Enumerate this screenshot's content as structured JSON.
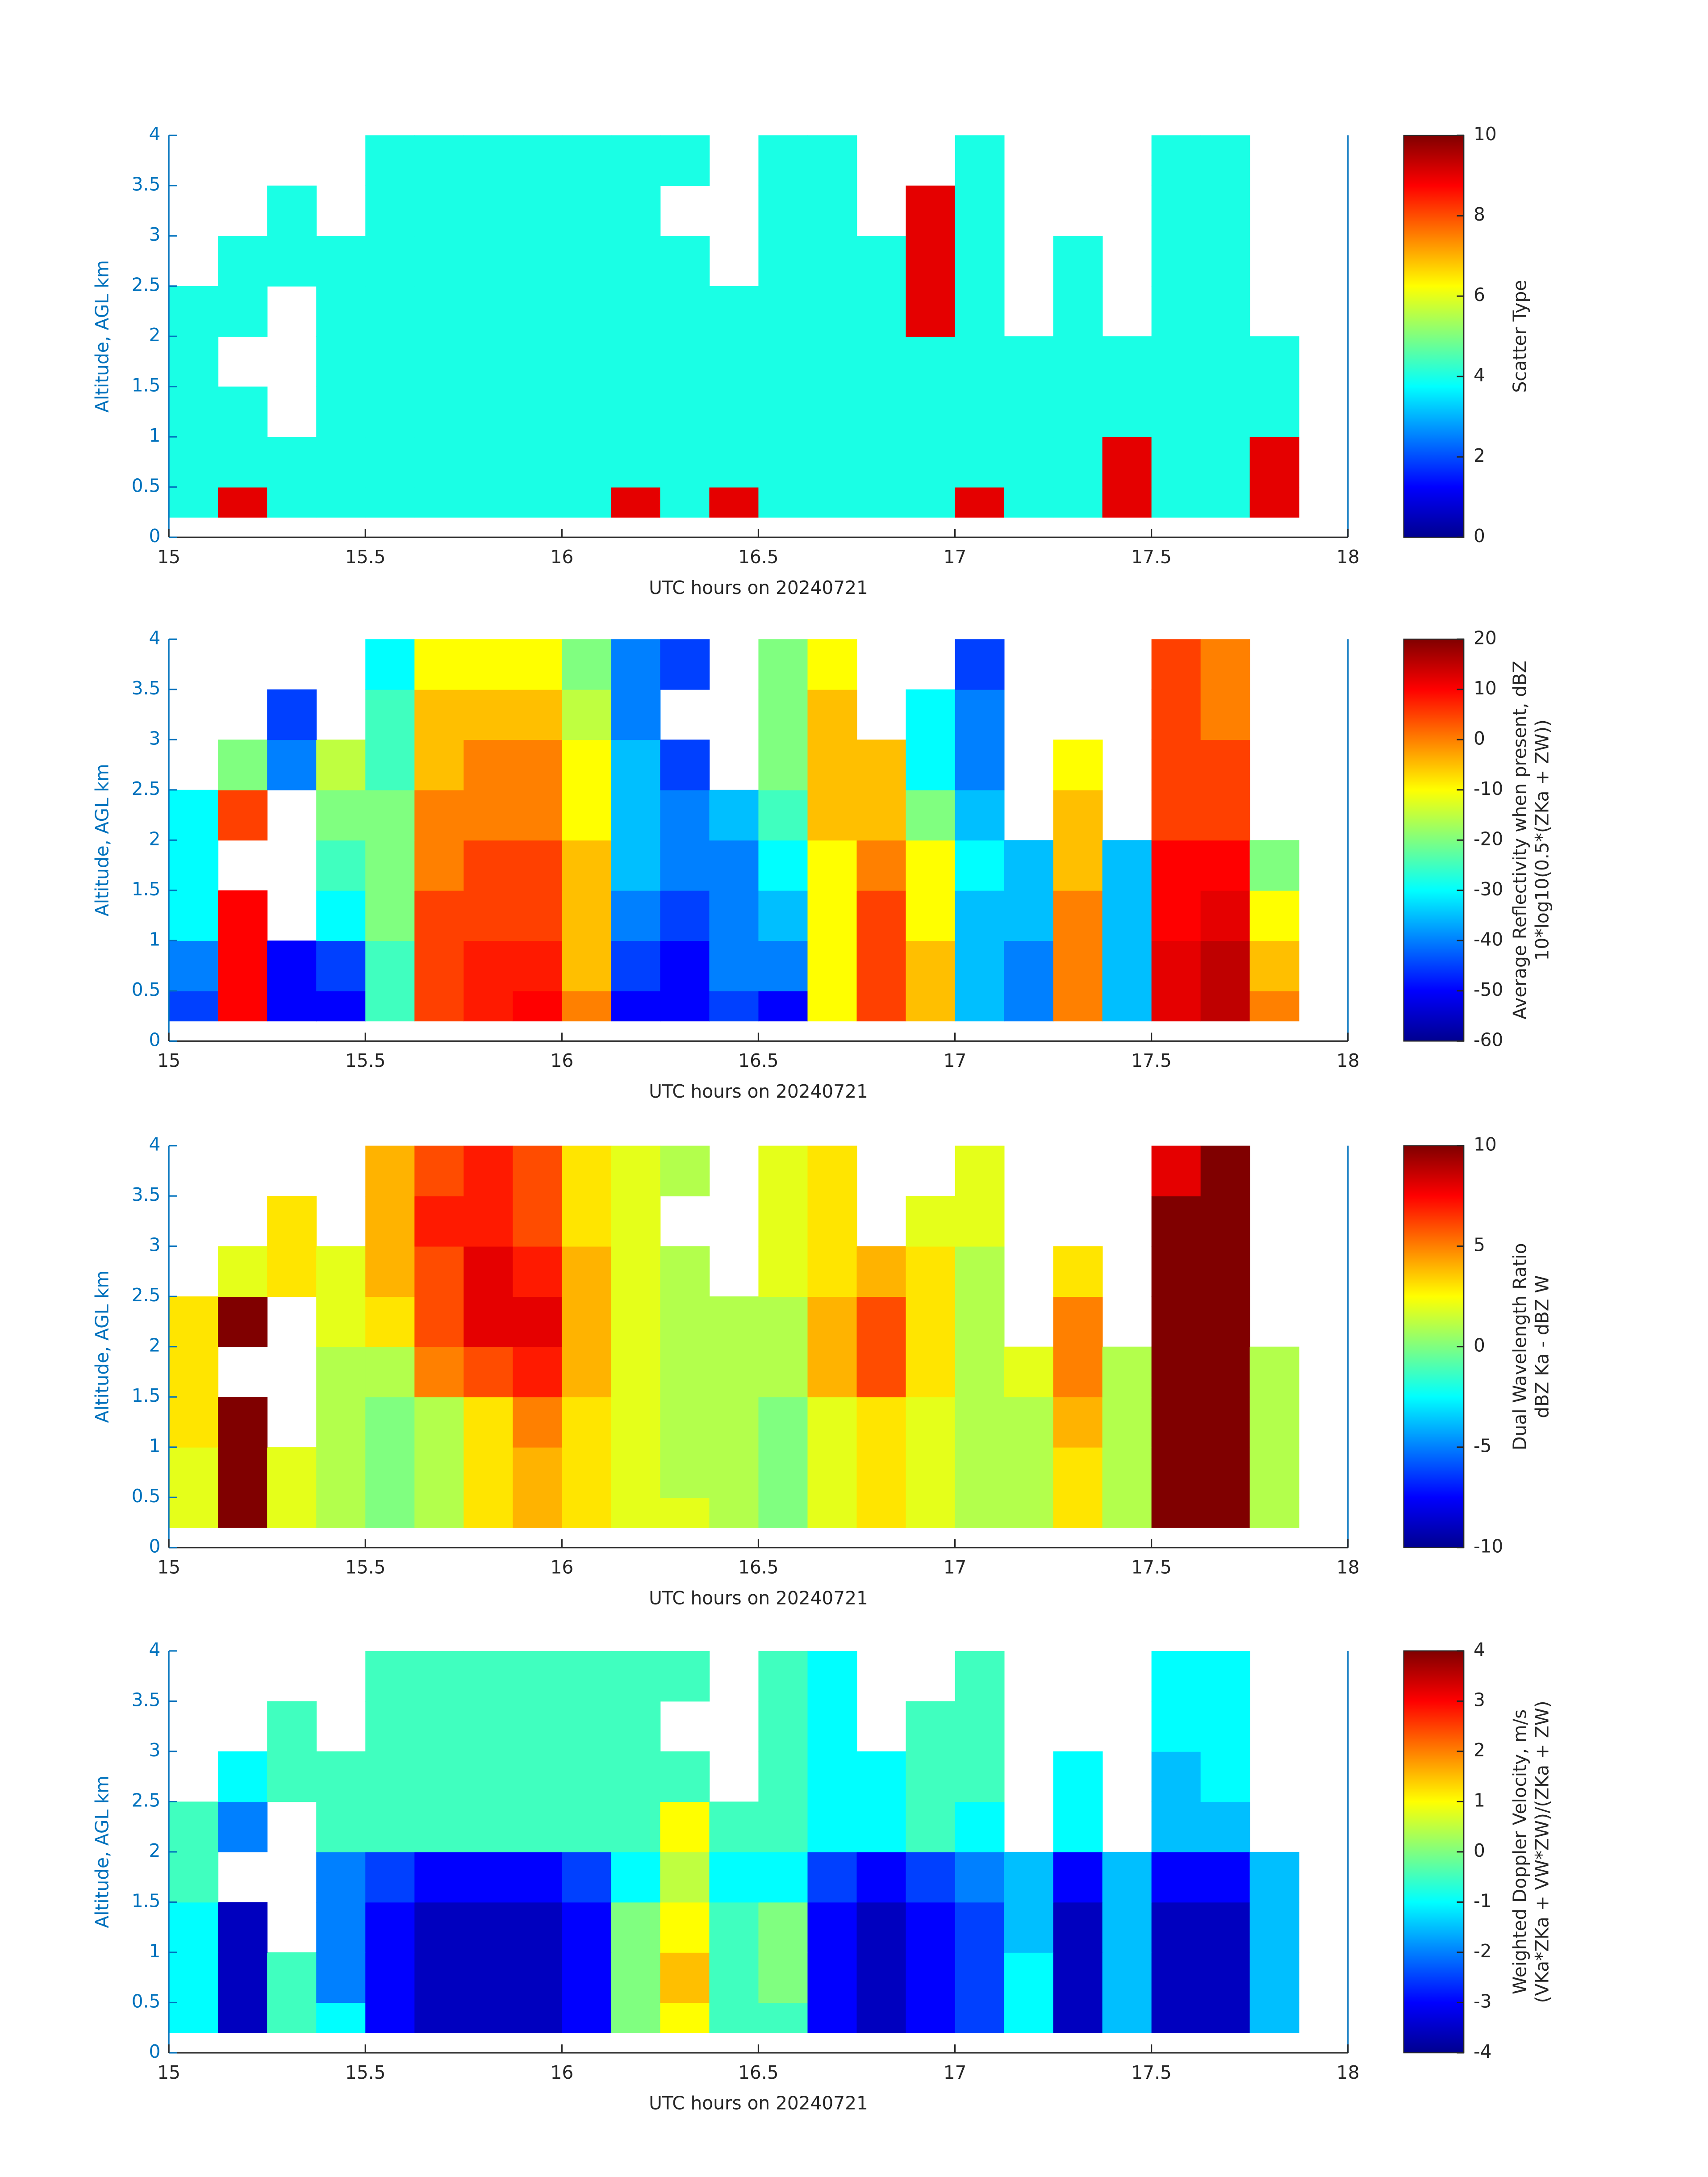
{
  "chart_data": [
    {
      "type": "heatmap",
      "colormap": "jet",
      "x": [
        15,
        15.125,
        15.25,
        15.375,
        15.5,
        15.625,
        15.75,
        15.875,
        16,
        16.125,
        16.25,
        16.375,
        16.5,
        16.625,
        16.75,
        16.875,
        17,
        17.125,
        17.25,
        17.375,
        17.5,
        17.625,
        17.75,
        17.875,
        18
      ],
      "y": [
        0.2,
        0.5,
        1,
        1.5,
        2,
        2.5,
        3,
        3.5,
        4
      ],
      "z": [
        [
          4,
          9,
          4,
          4,
          4,
          4,
          4,
          4,
          4,
          9,
          4,
          9,
          4,
          4,
          4,
          4,
          9,
          4,
          4,
          9,
          4,
          4,
          9,
          null
        ],
        [
          4,
          4,
          4,
          4,
          4,
          4,
          4,
          4,
          4,
          4,
          4,
          4,
          4,
          4,
          4,
          4,
          4,
          4,
          4,
          9,
          4,
          4,
          9,
          null
        ],
        [
          4,
          4,
          null,
          4,
          4,
          4,
          4,
          4,
          4,
          4,
          4,
          4,
          4,
          4,
          4,
          4,
          4,
          4,
          4,
          4,
          4,
          4,
          4,
          null
        ],
        [
          4,
          null,
          null,
          4,
          4,
          4,
          4,
          4,
          4,
          4,
          4,
          4,
          4,
          4,
          4,
          4,
          4,
          4,
          4,
          4,
          4,
          4,
          4,
          null
        ],
        [
          4,
          4,
          null,
          4,
          4,
          4,
          4,
          4,
          4,
          4,
          4,
          4,
          4,
          4,
          4,
          9,
          4,
          null,
          4,
          null,
          4,
          4,
          null,
          null
        ],
        [
          null,
          4,
          4,
          4,
          4,
          4,
          4,
          4,
          4,
          4,
          4,
          null,
          4,
          4,
          4,
          9,
          4,
          null,
          4,
          null,
          4,
          4,
          null,
          null
        ],
        [
          null,
          null,
          4,
          null,
          4,
          4,
          4,
          4,
          4,
          4,
          null,
          null,
          4,
          4,
          null,
          9,
          4,
          null,
          null,
          null,
          4,
          4,
          null,
          null
        ],
        [
          null,
          null,
          null,
          null,
          4,
          4,
          4,
          4,
          4,
          4,
          4,
          null,
          4,
          4,
          null,
          null,
          4,
          null,
          null,
          null,
          4,
          4,
          null,
          null
        ]
      ],
      "xlim": [
        15,
        18
      ],
      "ylim": [
        0,
        4
      ],
      "xticks": [
        15,
        15.5,
        16,
        16.5,
        17,
        17.5,
        18
      ],
      "yticks": [
        0,
        0.5,
        1,
        1.5,
        2,
        2.5,
        3,
        3.5,
        4
      ],
      "xlabel": "UTC hours on 20240721",
      "ylabel": "Altitude, AGL km",
      "colorbar": {
        "label": [
          "Scatter Type"
        ],
        "lim": [
          0,
          10
        ],
        "ticks": [
          0,
          2,
          4,
          6,
          8,
          10
        ]
      }
    },
    {
      "type": "heatmap",
      "colormap": "jet",
      "x": [
        15,
        15.125,
        15.25,
        15.375,
        15.5,
        15.625,
        15.75,
        15.875,
        16,
        16.125,
        16.25,
        16.375,
        16.5,
        16.625,
        16.75,
        16.875,
        17,
        17.125,
        17.25,
        17.375,
        17.5,
        17.625,
        17.75,
        17.875,
        18
      ],
      "y": [
        0.2,
        0.5,
        1,
        1.5,
        2,
        2.5,
        3,
        3.5,
        4
      ],
      "z": [
        [
          -45,
          10,
          -50,
          -50,
          -25,
          5,
          8,
          10,
          0,
          -50,
          -50,
          -45,
          -50,
          -10,
          5,
          -5,
          -35,
          -40,
          0,
          -35,
          12,
          15,
          0,
          null
        ],
        [
          -40,
          10,
          -50,
          -45,
          -25,
          5,
          8,
          8,
          -5,
          -45,
          -50,
          -40,
          -40,
          -10,
          5,
          -5,
          -35,
          -40,
          0,
          -35,
          12,
          15,
          -5,
          null
        ],
        [
          -30,
          10,
          null,
          -30,
          -20,
          5,
          5,
          5,
          -5,
          -40,
          -45,
          -40,
          -35,
          -10,
          5,
          -10,
          -35,
          -35,
          0,
          -35,
          10,
          12,
          -10,
          null
        ],
        [
          -30,
          null,
          null,
          -25,
          -20,
          0,
          5,
          5,
          -5,
          -35,
          -40,
          -40,
          -30,
          -10,
          0,
          -10,
          -30,
          -35,
          -5,
          -35,
          10,
          10,
          -20,
          null
        ],
        [
          -30,
          5,
          null,
          -20,
          -20,
          0,
          0,
          0,
          -10,
          -35,
          -40,
          -35,
          -25,
          -5,
          -5,
          -20,
          -35,
          null,
          -5,
          null,
          5,
          5,
          null,
          null
        ],
        [
          null,
          -20,
          -40,
          -15,
          -25,
          -5,
          0,
          0,
          -10,
          -35,
          -45,
          null,
          -20,
          -5,
          -5,
          -30,
          -40,
          null,
          -10,
          null,
          5,
          5,
          null,
          null
        ],
        [
          null,
          null,
          -45,
          null,
          -25,
          -5,
          -5,
          -5,
          -15,
          -40,
          null,
          null,
          -20,
          -5,
          null,
          -30,
          -40,
          null,
          null,
          null,
          5,
          0,
          null,
          null
        ],
        [
          null,
          null,
          null,
          null,
          -30,
          -10,
          -10,
          -10,
          -20,
          -40,
          -45,
          null,
          -20,
          -10,
          null,
          null,
          -45,
          null,
          null,
          null,
          5,
          0,
          null,
          null
        ]
      ],
      "xlim": [
        15,
        18
      ],
      "ylim": [
        0,
        4
      ],
      "xticks": [
        15,
        15.5,
        16,
        16.5,
        17,
        17.5,
        18
      ],
      "yticks": [
        0,
        0.5,
        1,
        1.5,
        2,
        2.5,
        3,
        3.5,
        4
      ],
      "xlabel": "UTC hours on 20240721",
      "ylabel": "Altitude, AGL km",
      "colorbar": {
        "label": [
          "Average Reflectivity when present, dBZ",
          "10*log10(0.5*(ZKa + ZW))"
        ],
        "lim": [
          -60,
          20
        ],
        "ticks": [
          -60,
          -50,
          -40,
          -30,
          -20,
          -10,
          0,
          10,
          20
        ]
      }
    },
    {
      "type": "heatmap",
      "colormap": "jet",
      "x": [
        15,
        15.125,
        15.25,
        15.375,
        15.5,
        15.625,
        15.75,
        15.875,
        16,
        16.125,
        16.25,
        16.375,
        16.5,
        16.625,
        16.75,
        16.875,
        17,
        17.125,
        17.25,
        17.375,
        17.5,
        17.625,
        17.75,
        17.875,
        18
      ],
      "y": [
        0.2,
        0.5,
        1,
        1.5,
        2,
        2.5,
        3,
        3.5,
        4
      ],
      "z": [
        [
          2,
          10,
          2,
          1,
          0,
          1,
          3,
          4,
          3,
          2,
          2,
          1,
          0,
          2,
          3,
          2,
          1,
          1,
          3,
          1,
          10,
          10,
          1,
          null
        ],
        [
          2,
          10,
          2,
          1,
          0,
          1,
          3,
          4,
          3,
          2,
          1,
          1,
          0,
          2,
          3,
          2,
          1,
          1,
          3,
          1,
          10,
          10,
          1,
          null
        ],
        [
          3,
          10,
          null,
          1,
          0,
          1,
          3,
          5,
          3,
          2,
          1,
          1,
          0,
          2,
          3,
          2,
          1,
          1,
          4,
          1,
          10,
          10,
          1,
          null
        ],
        [
          3,
          null,
          null,
          1,
          1,
          5,
          6,
          7,
          4,
          2,
          1,
          1,
          1,
          4,
          6,
          3,
          1,
          2,
          5,
          1,
          10,
          10,
          1,
          null
        ],
        [
          3,
          10,
          null,
          2,
          3,
          6,
          8,
          8,
          4,
          2,
          1,
          1,
          1,
          4,
          6,
          3,
          1,
          null,
          5,
          null,
          10,
          10,
          null,
          null
        ],
        [
          null,
          2,
          3,
          2,
          4,
          6,
          8,
          7,
          4,
          2,
          1,
          null,
          2,
          3,
          4,
          3,
          1,
          null,
          3,
          null,
          10,
          10,
          null,
          null
        ],
        [
          null,
          null,
          3,
          null,
          4,
          7,
          7,
          6,
          3,
          2,
          null,
          null,
          2,
          3,
          null,
          2,
          2,
          null,
          null,
          null,
          10,
          10,
          null,
          null
        ],
        [
          null,
          null,
          null,
          null,
          4,
          6,
          7,
          6,
          3,
          2,
          1,
          null,
          2,
          3,
          null,
          null,
          2,
          null,
          null,
          null,
          8,
          10,
          null,
          null
        ]
      ],
      "xlim": [
        15,
        18
      ],
      "ylim": [
        0,
        4
      ],
      "xticks": [
        15,
        15.5,
        16,
        16.5,
        17,
        17.5,
        18
      ],
      "yticks": [
        0,
        0.5,
        1,
        1.5,
        2,
        2.5,
        3,
        3.5,
        4
      ],
      "xlabel": "UTC hours on 20240721",
      "ylabel": "Altitude, AGL km",
      "colorbar": {
        "label": [
          "Dual Wavelength Ratio",
          "dBZ Ka - dBZ W"
        ],
        "lim": [
          -10,
          10
        ],
        "ticks": [
          -10,
          -5,
          0,
          5,
          10
        ]
      }
    },
    {
      "type": "heatmap",
      "colormap": "jet",
      "x": [
        15,
        15.125,
        15.25,
        15.375,
        15.5,
        15.625,
        15.75,
        15.875,
        16,
        16.125,
        16.25,
        16.375,
        16.5,
        16.625,
        16.75,
        16.875,
        17,
        17.125,
        17.25,
        17.375,
        17.5,
        17.625,
        17.75,
        17.875,
        18
      ],
      "y": [
        0.2,
        0.5,
        1,
        1.5,
        2,
        2.5,
        3,
        3.5,
        4
      ],
      "z": [
        [
          -1,
          -3.5,
          -0.5,
          -1,
          -3,
          -3.5,
          -3.5,
          -3.5,
          -3,
          0,
          1,
          -0.5,
          -0.5,
          -3,
          -3.5,
          -3,
          -2.5,
          -1,
          -3.5,
          -1.5,
          -3.5,
          -3.5,
          -1.5,
          null
        ],
        [
          -1,
          -3.5,
          -0.5,
          -2,
          -3,
          -3.5,
          -3.5,
          -3.5,
          -3,
          0,
          1.5,
          -0.5,
          0,
          -3,
          -3.5,
          -3,
          -2.5,
          -1,
          -3.5,
          -1.5,
          -3.5,
          -3.5,
          -1.5,
          null
        ],
        [
          -1,
          -3.5,
          null,
          -2,
          -3,
          -3.5,
          -3.5,
          -3.5,
          -3,
          0,
          1,
          -0.5,
          0,
          -3,
          -3.5,
          -3,
          -2.5,
          -1.5,
          -3.5,
          -1.5,
          -3.5,
          -3.5,
          -1.5,
          null
        ],
        [
          -0.5,
          null,
          null,
          -2,
          -2.5,
          -3,
          -3,
          -3,
          -2.5,
          -1,
          0.5,
          -1,
          -1,
          -2.5,
          -3,
          -2.5,
          -2,
          -1.5,
          -3,
          -1.5,
          -3,
          -3,
          -1.5,
          null
        ],
        [
          -0.5,
          -2,
          null,
          -0.5,
          -0.5,
          -0.5,
          -0.5,
          -0.5,
          -0.5,
          -0.5,
          1,
          -0.5,
          -0.5,
          -1,
          -1,
          -0.5,
          -1,
          null,
          -1,
          null,
          -1.5,
          -1.5,
          null,
          null
        ],
        [
          null,
          -1,
          -0.5,
          -0.5,
          -0.5,
          -0.5,
          -0.5,
          -0.5,
          -0.5,
          -0.5,
          -0.5,
          null,
          -0.5,
          -1,
          -1,
          -0.5,
          -0.5,
          null,
          -1,
          null,
          -1.5,
          -1,
          null,
          null
        ],
        [
          null,
          null,
          -0.5,
          null,
          -0.5,
          -0.5,
          -0.5,
          -0.5,
          -0.5,
          -0.5,
          null,
          null,
          -0.5,
          -1,
          null,
          -0.5,
          -0.5,
          null,
          null,
          null,
          -1,
          -1,
          null,
          null
        ],
        [
          null,
          null,
          null,
          null,
          -0.5,
          -0.5,
          -0.5,
          -0.5,
          -0.5,
          -0.5,
          -0.5,
          null,
          -0.5,
          -1,
          null,
          null,
          -0.5,
          null,
          null,
          null,
          -1,
          -1,
          null,
          null
        ]
      ],
      "xlim": [
        15,
        18
      ],
      "ylim": [
        0,
        4
      ],
      "xticks": [
        15,
        15.5,
        16,
        16.5,
        17,
        17.5,
        18
      ],
      "yticks": [
        0,
        0.5,
        1,
        1.5,
        2,
        2.5,
        3,
        3.5,
        4
      ],
      "xlabel": "UTC hours on 20240721",
      "ylabel": "Altitude, AGL km",
      "colorbar": {
        "label": [
          "Weighted Doppler Velocity, m/s",
          "(VKa*ZKa + VW*ZW)/(ZKa + ZW)"
        ],
        "lim": [
          -4,
          4
        ],
        "ticks": [
          -4,
          -3,
          -2,
          -1,
          0,
          1,
          2,
          3,
          4
        ]
      }
    }
  ]
}
